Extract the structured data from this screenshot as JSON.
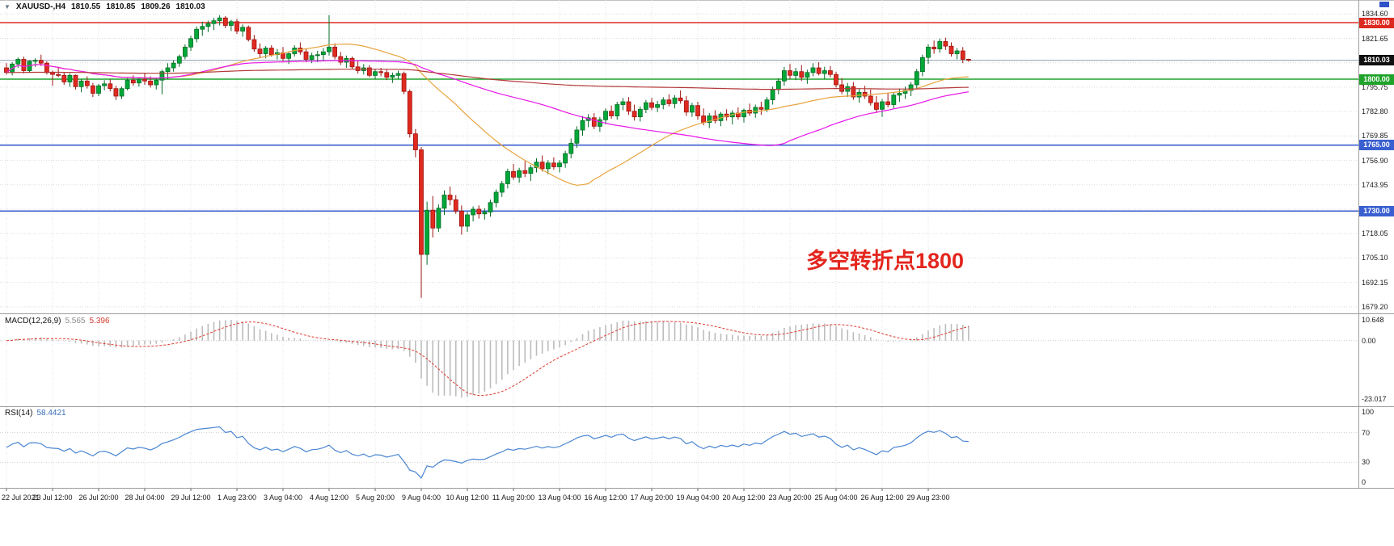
{
  "window": {
    "symbol": "XAUUSD-,H4",
    "ohlc": {
      "open": "1810.55",
      "high": "1810.85",
      "low": "1809.26",
      "close": "1810.03"
    }
  },
  "annotation": {
    "text": "多空转折点1800",
    "color": "#e3261e"
  },
  "chart_data": {
    "type": "candlestick",
    "symbol": "XAUUSD",
    "timeframe": "H4",
    "title": "XAUUSD-,H4 gold chart with MACD and RSI",
    "ylim": [
      1674,
      1842
    ],
    "candle_format": "[open, high, low, close]",
    "bull_color": "#00a838",
    "bull_stroke": "#046b26",
    "bear_color": "#e02a20",
    "bear_stroke": "#9c1410",
    "price_axis": {
      "labels": [
        "1834.60",
        "1821.65",
        "1808.70",
        "1795.75",
        "1782.80",
        "1769.85",
        "1756.90",
        "1743.95",
        "1731.00",
        "1718.05",
        "1705.10",
        "1692.15",
        "1679.20"
      ],
      "values": [
        1834.6,
        1821.65,
        1808.7,
        1795.75,
        1782.8,
        1769.85,
        1756.9,
        1743.95,
        1731.0,
        1718.05,
        1705.1,
        1692.15,
        1679.2
      ]
    },
    "time_axis": [
      {
        "i": 0,
        "label": "22 Jul 2021"
      },
      {
        "i": 8,
        "label": "23 Jul 12:00"
      },
      {
        "i": 16,
        "label": "26 Jul 20:00"
      },
      {
        "i": 24,
        "label": "28 Jul 04:00"
      },
      {
        "i": 32,
        "label": "29 Jul 12:00"
      },
      {
        "i": 40,
        "label": "1 Aug 23:00"
      },
      {
        "i": 48,
        "label": "3 Aug 04:00"
      },
      {
        "i": 56,
        "label": "4 Aug 12:00"
      },
      {
        "i": 64,
        "label": "5 Aug 20:00"
      },
      {
        "i": 72,
        "label": "9 Aug 04:00"
      },
      {
        "i": 80,
        "label": "10 Aug 12:00"
      },
      {
        "i": 88,
        "label": "11 Aug 20:00"
      },
      {
        "i": 96,
        "label": "13 Aug 04:00"
      },
      {
        "i": 104,
        "label": "16 Aug 12:00"
      },
      {
        "i": 112,
        "label": "17 Aug 20:00"
      },
      {
        "i": 120,
        "label": "19 Aug 04:00"
      },
      {
        "i": 128,
        "label": "20 Aug 12:00"
      },
      {
        "i": 136,
        "label": "23 Aug 20:00"
      },
      {
        "i": 144,
        "label": "25 Aug 04:00"
      },
      {
        "i": 152,
        "label": "26 Aug 12:00"
      },
      {
        "i": 160,
        "label": "29 Aug 23:00"
      }
    ],
    "candles": [
      [
        1806,
        1808.5,
        1802.5,
        1803.5
      ],
      [
        1803.5,
        1809,
        1802,
        1808
      ],
      [
        1808,
        1811.5,
        1806,
        1810.5
      ],
      [
        1810.5,
        1812,
        1803,
        1804.5
      ],
      [
        1804.5,
        1810,
        1803.5,
        1809.5
      ],
      [
        1809.5,
        1811,
        1806.5,
        1810
      ],
      [
        1810,
        1813,
        1807,
        1808.5
      ],
      [
        1808.5,
        1809.5,
        1802.5,
        1803.5
      ],
      [
        1803.5,
        1804.5,
        1796.5,
        1802.5
      ],
      [
        1802.5,
        1806.5,
        1801,
        1802
      ],
      [
        1802,
        1803.5,
        1797,
        1798.5
      ],
      [
        1798.5,
        1803,
        1796,
        1802
      ],
      [
        1802,
        1802.5,
        1794.5,
        1796
      ],
      [
        1796,
        1800,
        1793,
        1799
      ],
      [
        1799,
        1801.5,
        1795,
        1796.5
      ],
      [
        1796.5,
        1798,
        1790.5,
        1792.5
      ],
      [
        1792.5,
        1797.5,
        1791,
        1796.5
      ],
      [
        1796.5,
        1799.5,
        1794,
        1797.5
      ],
      [
        1797.5,
        1800,
        1793.5,
        1795
      ],
      [
        1795,
        1796.5,
        1789,
        1791
      ],
      [
        1791,
        1796,
        1789.5,
        1795
      ],
      [
        1795,
        1800.5,
        1794,
        1799.5
      ],
      [
        1799.5,
        1802,
        1796.5,
        1798
      ],
      [
        1798,
        1801,
        1796,
        1800
      ],
      [
        1800,
        1803,
        1797,
        1799
      ],
      [
        1799,
        1801.5,
        1795.5,
        1797
      ],
      [
        1797,
        1800.5,
        1794.5,
        1799.5
      ],
      [
        1799.5,
        1805,
        1792,
        1804
      ],
      [
        1804,
        1808.5,
        1800,
        1806
      ],
      [
        1806,
        1810,
        1804,
        1808.5
      ],
      [
        1808.5,
        1813,
        1806.5,
        1812
      ],
      [
        1812,
        1818.5,
        1810.5,
        1817
      ],
      [
        1817,
        1823,
        1815,
        1821.5
      ],
      [
        1821.5,
        1828,
        1819.5,
        1826.5
      ],
      [
        1826.5,
        1830.5,
        1823,
        1828
      ],
      [
        1828,
        1831,
        1825,
        1829.5
      ],
      [
        1829.5,
        1832.5,
        1826,
        1831
      ],
      [
        1831,
        1834,
        1828.5,
        1832.5
      ],
      [
        1832.5,
        1833.5,
        1827,
        1828.5
      ],
      [
        1828.5,
        1831.5,
        1825.5,
        1830.5
      ],
      [
        1830.5,
        1832,
        1824,
        1825.5
      ],
      [
        1825.5,
        1829,
        1822.5,
        1827.5
      ],
      [
        1827.5,
        1828.5,
        1820,
        1821
      ],
      [
        1821,
        1823.5,
        1814.5,
        1816
      ],
      [
        1816,
        1819,
        1811.5,
        1813.5
      ],
      [
        1813.5,
        1817.5,
        1811,
        1816.5
      ],
      [
        1816.5,
        1818,
        1812,
        1813
      ],
      [
        1813,
        1816,
        1810.5,
        1814
      ],
      [
        1814,
        1817,
        1809.5,
        1811
      ],
      [
        1811,
        1814.5,
        1808,
        1813.5
      ],
      [
        1813.5,
        1818,
        1812,
        1816.5
      ],
      [
        1816.5,
        1819.5,
        1813,
        1814.5
      ],
      [
        1814.5,
        1816,
        1809,
        1810.5
      ],
      [
        1810.5,
        1814,
        1808.5,
        1812.5
      ],
      [
        1812.5,
        1815,
        1809,
        1813
      ],
      [
        1813,
        1816.5,
        1810,
        1814.5
      ],
      [
        1814.5,
        1834,
        1812.5,
        1817
      ],
      [
        1817,
        1819,
        1810.5,
        1812
      ],
      [
        1812,
        1814.5,
        1807.5,
        1809
      ],
      [
        1809,
        1812.5,
        1806,
        1811
      ],
      [
        1811,
        1812,
        1805.5,
        1806.5
      ],
      [
        1806.5,
        1809.5,
        1803,
        1804.5
      ],
      [
        1804.5,
        1808,
        1802.5,
        1806
      ],
      [
        1806,
        1807.5,
        1801,
        1802
      ],
      [
        1802,
        1805.5,
        1800,
        1804
      ],
      [
        1804,
        1806,
        1801.5,
        1803.5
      ],
      [
        1803.5,
        1805,
        1799.5,
        1801
      ],
      [
        1801,
        1803.5,
        1798,
        1802
      ],
      [
        1802,
        1804.5,
        1800,
        1803
      ],
      [
        1803,
        1804,
        1792,
        1793.5
      ],
      [
        1793.5,
        1794.5,
        1769,
        1771
      ],
      [
        1771,
        1773.5,
        1758.5,
        1762.5
      ],
      [
        1762.5,
        1764,
        1684,
        1707
      ],
      [
        1707,
        1735,
        1701.5,
        1730.5
      ],
      [
        1730.5,
        1738,
        1716,
        1721
      ],
      [
        1721,
        1733.5,
        1719,
        1731.5
      ],
      [
        1731.5,
        1741,
        1728,
        1738.5
      ],
      [
        1738.5,
        1743,
        1733,
        1736
      ],
      [
        1736,
        1738.5,
        1728.5,
        1730
      ],
      [
        1730,
        1733,
        1717.5,
        1722
      ],
      [
        1722,
        1729.5,
        1719,
        1728
      ],
      [
        1728,
        1732.5,
        1724.5,
        1731
      ],
      [
        1731,
        1733,
        1726,
        1728.5
      ],
      [
        1728.5,
        1731.5,
        1725.5,
        1729.5
      ],
      [
        1729.5,
        1736,
        1727,
        1734.5
      ],
      [
        1734.5,
        1741.5,
        1732,
        1740
      ],
      [
        1740,
        1746,
        1737.5,
        1744.5
      ],
      [
        1744.5,
        1752.5,
        1742,
        1751
      ],
      [
        1751,
        1755,
        1746.5,
        1748
      ],
      [
        1748,
        1753,
        1745,
        1751.5
      ],
      [
        1751.5,
        1756.5,
        1748,
        1750
      ],
      [
        1750,
        1754.5,
        1746,
        1753
      ],
      [
        1753,
        1758,
        1750.5,
        1756
      ],
      [
        1756,
        1759.5,
        1751,
        1752.5
      ],
      [
        1752.5,
        1757,
        1749.5,
        1755.5
      ],
      [
        1755.5,
        1758.5,
        1752,
        1753.5
      ],
      [
        1753.5,
        1757,
        1750.5,
        1755.5
      ],
      [
        1755.5,
        1762,
        1753,
        1760.5
      ],
      [
        1760.5,
        1768.5,
        1758,
        1766
      ],
      [
        1766,
        1775,
        1763.5,
        1773
      ],
      [
        1773,
        1780.5,
        1770,
        1778
      ],
      [
        1778,
        1781.5,
        1774.5,
        1779.5
      ],
      [
        1779.5,
        1782,
        1773.5,
        1775
      ],
      [
        1775,
        1780,
        1772,
        1778.5
      ],
      [
        1778.5,
        1784.5,
        1776,
        1783
      ],
      [
        1783,
        1786,
        1779,
        1780.5
      ],
      [
        1780.5,
        1788,
        1778.5,
        1786.5
      ],
      [
        1786.5,
        1790,
        1783.5,
        1788
      ],
      [
        1788,
        1790.5,
        1781,
        1783
      ],
      [
        1783,
        1786.5,
        1778,
        1780
      ],
      [
        1780,
        1785.5,
        1777.5,
        1784
      ],
      [
        1784,
        1789,
        1782,
        1787.5
      ],
      [
        1787.5,
        1790,
        1783.5,
        1785
      ],
      [
        1785,
        1788.5,
        1782.5,
        1786.5
      ],
      [
        1786.5,
        1790.5,
        1784,
        1789
      ],
      [
        1789,
        1792,
        1785.5,
        1787
      ],
      [
        1787,
        1791.5,
        1784.5,
        1790
      ],
      [
        1790,
        1794,
        1787,
        1788.5
      ],
      [
        1788.5,
        1791,
        1780.5,
        1782.5
      ],
      [
        1782.5,
        1787.5,
        1780,
        1786
      ],
      [
        1786,
        1788,
        1778.5,
        1780.5
      ],
      [
        1780.5,
        1784.5,
        1775.5,
        1777
      ],
      [
        1777,
        1782,
        1774,
        1780.5
      ],
      [
        1780.5,
        1783.5,
        1776.5,
        1778
      ],
      [
        1778,
        1782.5,
        1775,
        1781.5
      ],
      [
        1781.5,
        1784,
        1778,
        1780
      ],
      [
        1780,
        1783.5,
        1776,
        1782
      ],
      [
        1782,
        1785,
        1778.5,
        1780
      ],
      [
        1780,
        1784.5,
        1777,
        1783.5
      ],
      [
        1783.5,
        1787,
        1780.5,
        1782
      ],
      [
        1782,
        1786.5,
        1779.5,
        1785
      ],
      [
        1785,
        1788,
        1781,
        1784
      ],
      [
        1784,
        1790.5,
        1782.5,
        1789
      ],
      [
        1789,
        1796,
        1786.5,
        1794.5
      ],
      [
        1794.5,
        1800.5,
        1792,
        1799
      ],
      [
        1799,
        1806.5,
        1796.5,
        1804.5
      ],
      [
        1804.5,
        1808,
        1800,
        1802
      ],
      [
        1802,
        1806,
        1799.5,
        1804
      ],
      [
        1804,
        1807.5,
        1799,
        1801
      ],
      [
        1801,
        1805,
        1797.5,
        1803.5
      ],
      [
        1803.5,
        1808.5,
        1801.5,
        1806
      ],
      [
        1806,
        1809,
        1802,
        1803
      ],
      [
        1803,
        1806.5,
        1800,
        1804.5
      ],
      [
        1804.5,
        1807,
        1801,
        1802.5
      ],
      [
        1802.5,
        1804,
        1795.5,
        1797
      ],
      [
        1797,
        1800.5,
        1792,
        1793.5
      ],
      [
        1793.5,
        1798,
        1790.5,
        1796
      ],
      [
        1796,
        1798.5,
        1789,
        1790.5
      ],
      [
        1790.5,
        1795,
        1787.5,
        1793
      ],
      [
        1793,
        1796.5,
        1789.5,
        1791
      ],
      [
        1791,
        1794.5,
        1786,
        1787.5
      ],
      [
        1787.5,
        1791,
        1782.5,
        1784
      ],
      [
        1784,
        1789.5,
        1780,
        1788
      ],
      [
        1788,
        1792.5,
        1785,
        1786.5
      ],
      [
        1786.5,
        1793,
        1784.5,
        1791.5
      ],
      [
        1791.5,
        1795,
        1788,
        1792.5
      ],
      [
        1792.5,
        1796,
        1789.5,
        1794
      ],
      [
        1794,
        1798.5,
        1791,
        1797
      ],
      [
        1797,
        1805.5,
        1795,
        1804
      ],
      [
        1804,
        1813,
        1801.5,
        1811.5
      ],
      [
        1811.5,
        1818.5,
        1808,
        1817
      ],
      [
        1817,
        1820.5,
        1813.5,
        1816
      ],
      [
        1816,
        1821.5,
        1814,
        1820
      ],
      [
        1820,
        1822,
        1815.5,
        1817.5
      ],
      [
        1817.5,
        1819.5,
        1812,
        1813.5
      ],
      [
        1813.5,
        1816.5,
        1810.5,
        1815
      ],
      [
        1815,
        1817,
        1808.5,
        1810.5
      ],
      [
        1810.55,
        1810.85,
        1809.26,
        1810.03
      ]
    ],
    "moving_averages": [
      {
        "name": "ma-fast-orange",
        "period": 30,
        "type": "sma",
        "color": "#e8a33d"
      },
      {
        "name": "ma-mid-magenta",
        "period": 64,
        "type": "sma",
        "color": "#e816e8"
      },
      {
        "name": "ma-long-darkred",
        "period": 400,
        "type": "ema",
        "color": "#b43a3a"
      }
    ],
    "horizontal_lines": [
      {
        "price": 1830.0,
        "label": "1830.00",
        "color": "#dd2a20"
      },
      {
        "price": 1800.0,
        "label": "1800.00",
        "color": "#1fa32a"
      },
      {
        "price": 1765.0,
        "label": "1765.00",
        "color": "#3a5fd0"
      },
      {
        "price": 1730.0,
        "label": "1730.00",
        "color": "#3a5fd0"
      }
    ],
    "bid_line": {
      "price": 1810.03,
      "label": "1810.03",
      "line_color": "#90a0b4",
      "tag_color": "#101010"
    },
    "macd": {
      "title": "MACD(12,26,9)",
      "main_value": "5.565",
      "signal_value": "5.396",
      "axis_labels": [
        "10.648",
        "0.00",
        "-23.017"
      ],
      "histogram_color": "#bcbcbc",
      "signal_color": "#dd3a2e"
    },
    "rsi": {
      "title": "RSI(14)",
      "value": "58.4421",
      "axis_labels": [
        "100",
        "70",
        "30",
        "0"
      ],
      "levels": [
        70,
        30
      ],
      "line_color": "#4a86d2"
    }
  }
}
